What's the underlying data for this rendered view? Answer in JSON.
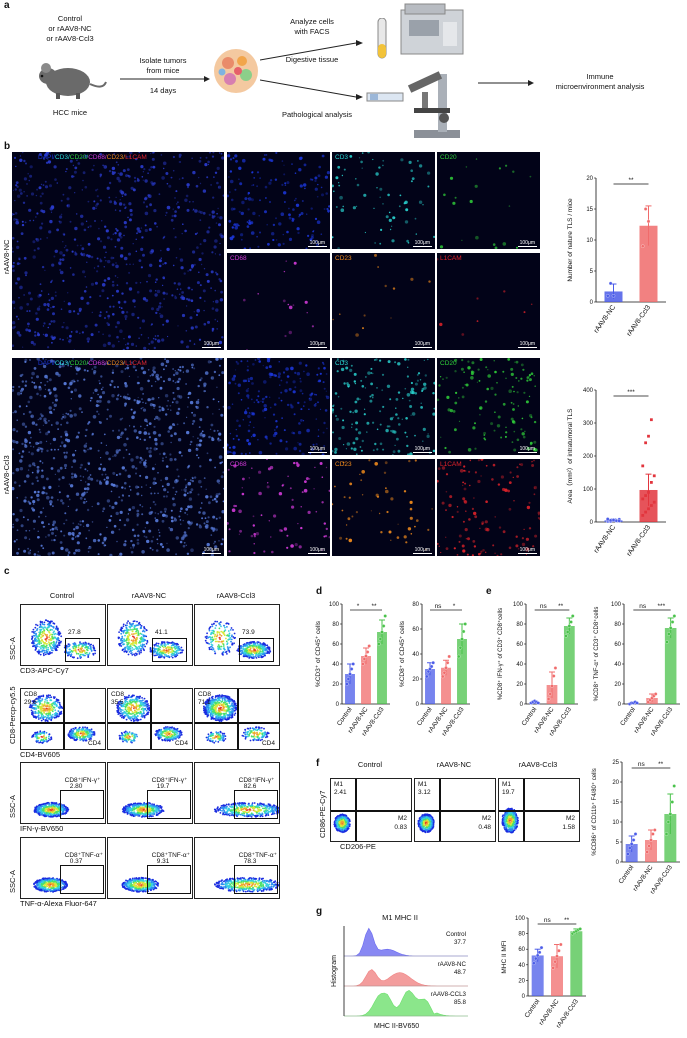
{
  "panel_labels": {
    "a": "a",
    "b": "b",
    "c": "c",
    "d": "d",
    "e": "e",
    "f": "f",
    "g": "g"
  },
  "a": {
    "groups": "Control\nor rAAV8-NC\nor rAAV8-Ccl3",
    "mice": "HCC mice",
    "isolate": "Isolate tumors\nfrom mice",
    "days": "14 days",
    "analyze": "Analyze cells\nwith FACS",
    "digest": "Digestive tissue",
    "patho": "Pathological analysis",
    "immune": "Immune\nmicroenvironment analysis"
  },
  "b": {
    "row_nc": "rAAV8-NC",
    "row_ccl3": "rAAV8-Ccl3",
    "merge_parts": [
      "DAPI/",
      "CD3/",
      "CD20/",
      "CD68/",
      "CD23/",
      "L1CAM"
    ],
    "scale_large": "100μm",
    "scale_small": "100μm",
    "channels": [
      "",
      "CD3",
      "CD20",
      "CD68",
      "CD23",
      "L1CAM"
    ],
    "colors": {
      "dapi": "#1b36d8",
      "cd3": "#2ad7d3",
      "cd20": "#30d13a",
      "cd68": "#d23ad9",
      "cd23": "#f08a1c",
      "l1cam": "#e3232a"
    }
  },
  "chart_data": [
    {
      "type": "scatter",
      "panel": "b",
      "ylabel": "Number of nature TLS / mice",
      "categories": [
        "rAAV8-NC",
        "rAAV8-Ccl3"
      ],
      "ylim": [
        0,
        20
      ],
      "yticks": [
        0,
        5,
        10,
        15,
        20
      ],
      "means": [
        1.7,
        12.3
      ],
      "errors": [
        1.2,
        3.2
      ],
      "points": [
        [
          1,
          3,
          1
        ],
        [
          9,
          15,
          13
        ]
      ],
      "sig": [
        "**"
      ],
      "colors": [
        "#4a5be8",
        "#f06b6b"
      ]
    },
    {
      "type": "scatter",
      "panel": "b",
      "ylabel": "Area（mm²）of intratumoral TLS",
      "categories": [
        "rAAV8-NC",
        "rAAV8-Ccl3"
      ],
      "ylim": [
        0,
        400
      ],
      "yticks": [
        0,
        100,
        200,
        300,
        400
      ],
      "means": [
        5,
        97
      ],
      "errors": [
        4,
        48
      ],
      "points": [
        [
          2,
          4,
          6,
          3,
          8,
          5,
          2,
          7,
          4,
          3,
          9,
          5,
          6
        ],
        [
          20,
          30,
          40,
          50,
          60,
          70,
          80,
          90,
          120,
          140,
          170,
          240,
          260,
          310
        ]
      ],
      "sig": [
        "***"
      ],
      "colors": [
        "#4a5be8",
        "#e2353d"
      ]
    },
    {
      "type": "bar",
      "panel": "d",
      "ylabel": "%CD3⁺ of CD45⁺ cells",
      "categories": [
        "Control",
        "rAAV8-NC",
        "rAAV8-Ccl3"
      ],
      "ylim": [
        0,
        100
      ],
      "yticks": [
        0,
        20,
        40,
        60,
        80,
        100
      ],
      "values": [
        30,
        48,
        72
      ],
      "errors": [
        10,
        8,
        12
      ],
      "points": [
        [
          20,
          25,
          30,
          35,
          40
        ],
        [
          40,
          45,
          48,
          52,
          58
        ],
        [
          60,
          65,
          72,
          78,
          88
        ]
      ],
      "sig": [
        "*",
        "**"
      ],
      "colors": [
        "#4a5be8",
        "#f06b6b",
        "#49c24a"
      ]
    },
    {
      "type": "bar",
      "panel": "d",
      "ylabel": "%CD8⁺ of CD45⁺ cells",
      "categories": [
        "Control",
        "rAAV8-NC",
        "rAAV8-Ccl3"
      ],
      "ylim": [
        0,
        80
      ],
      "yticks": [
        0,
        20,
        40,
        60,
        80
      ],
      "values": [
        28,
        29,
        52
      ],
      "errors": [
        5,
        6,
        12
      ],
      "points": [
        [
          22,
          26,
          28,
          30,
          33
        ],
        [
          22,
          25,
          29,
          33,
          38
        ],
        [
          38,
          45,
          52,
          58,
          64
        ]
      ],
      "sig": [
        "ns",
        "*"
      ],
      "colors": [
        "#4a5be8",
        "#f06b6b",
        "#49c24a"
      ]
    },
    {
      "type": "bar",
      "panel": "e",
      "ylabel": "%CD8⁺ IFN-γ⁺ of CD3⁺ CD8⁺cells",
      "categories": [
        "Control",
        "rAAV8-NC",
        "rAAV8-Ccl3"
      ],
      "ylim": [
        0,
        100
      ],
      "yticks": [
        0,
        20,
        40,
        60,
        80,
        100
      ],
      "values": [
        2,
        19,
        78
      ],
      "errors": [
        1,
        13,
        8
      ],
      "points": [
        [
          1,
          2,
          3,
          2,
          1
        ],
        [
          5,
          10,
          18,
          28,
          36
        ],
        [
          68,
          72,
          78,
          82,
          88
        ]
      ],
      "sig": [
        "ns",
        "**"
      ],
      "colors": [
        "#4a5be8",
        "#f06b6b",
        "#49c24a"
      ]
    },
    {
      "type": "bar",
      "panel": "e",
      "ylabel": "%CD8⁺ TNF-α⁺ of CD3⁺ CD8⁺cells",
      "categories": [
        "Control",
        "rAAV8-NC",
        "rAAV8-Ccl3"
      ],
      "ylim": [
        0,
        100
      ],
      "yticks": [
        0,
        20,
        40,
        60,
        80,
        100
      ],
      "values": [
        1,
        6,
        76
      ],
      "errors": [
        0.5,
        4,
        10
      ],
      "points": [
        [
          0,
          1,
          1,
          2,
          1
        ],
        [
          2,
          4,
          6,
          8,
          10
        ],
        [
          62,
          70,
          76,
          82,
          88
        ]
      ],
      "sig": [
        "ns",
        "***"
      ],
      "colors": [
        "#4a5be8",
        "#f06b6b",
        "#49c24a"
      ]
    },
    {
      "type": "bar",
      "panel": "f",
      "ylabel": "%CD86⁺ of CD11b⁺ F4/80⁺ cells",
      "categories": [
        "Control",
        "rAAV8-NC",
        "rAAV8-Ccl3"
      ],
      "ylim": [
        0,
        25
      ],
      "yticks": [
        0,
        5,
        10,
        15,
        20,
        25
      ],
      "values": [
        4.5,
        5.5,
        12
      ],
      "errors": [
        2,
        2.5,
        5
      ],
      "points": [
        [
          2,
          3.5,
          4.5,
          5.5,
          7
        ],
        [
          2.5,
          4,
          5.5,
          7,
          8
        ],
        [
          7,
          10,
          12,
          15,
          19
        ]
      ],
      "sig": [
        "ns",
        "**"
      ],
      "colors": [
        "#4a5be8",
        "#f06b6b",
        "#49c24a"
      ]
    },
    {
      "type": "bar",
      "panel": "g",
      "ylabel": "MHC II MFI",
      "categories": [
        "Control",
        "rAAV8-NC",
        "rAAV8-Ccl3"
      ],
      "ylim": [
        0,
        100
      ],
      "yticks": [
        0,
        20,
        40,
        60,
        80,
        100
      ],
      "values": [
        52,
        51,
        83
      ],
      "errors": [
        8,
        15,
        3
      ],
      "points": [
        [
          42,
          48,
          52,
          56,
          62
        ],
        [
          36,
          44,
          51,
          58,
          66
        ],
        [
          80,
          82,
          83,
          85,
          86
        ]
      ],
      "sig": [
        "ns",
        "**"
      ],
      "colors": [
        "#4a5be8",
        "#f06b6b",
        "#49c24a"
      ]
    }
  ],
  "c": {
    "columns": [
      "Control",
      "rAAV8-NC",
      "rAAV8-Ccl3"
    ],
    "row1": {
      "y": "SSC-A",
      "x": "CD3-APC-Cy7",
      "values": [
        "27.8",
        "41.1",
        "73.9"
      ]
    },
    "row2": {
      "y": "CD8-Percp-cy5.5",
      "x": "CD4-BV605",
      "label_cd8": "CD8",
      "label_cd4": "CD4",
      "values": [
        "29.6",
        "35.5",
        "71.1"
      ]
    },
    "row3": {
      "y": "SSC-A",
      "x": "IFN-γ-BV650",
      "gate": "CD8⁺IFN-γ⁺",
      "values": [
        "2.80",
        "19.7",
        "82.6"
      ]
    },
    "row4": {
      "y": "SSC-A",
      "x": "TNF-α-Alexa Fluor-647",
      "gate": "CD8⁺TNF-α⁺",
      "values": [
        "0.37",
        "9.31",
        "78.3"
      ]
    }
  },
  "f": {
    "columns": [
      "Control",
      "rAAV8-NC",
      "rAAV8-Ccl3"
    ],
    "y": "CD86-PE-Cy7",
    "x": "CD206-PE",
    "m1_label": "M1",
    "m2_label": "M2",
    "m1": [
      "2.41",
      "3.12",
      "19.7"
    ],
    "m2": [
      "0.83",
      "0.48",
      "1.58"
    ]
  },
  "g": {
    "title": "M1 MHC II",
    "y": "Histogram",
    "x": "MHC II-BV650",
    "traces": [
      {
        "name": "Control",
        "value": "37.7",
        "color": "#6a6af0"
      },
      {
        "name": "rAAV8-NC",
        "value": "48.7",
        "color": "#f08484"
      },
      {
        "name": "rAAV8-CCL3",
        "value": "85.8",
        "color": "#6ee06e"
      }
    ]
  }
}
